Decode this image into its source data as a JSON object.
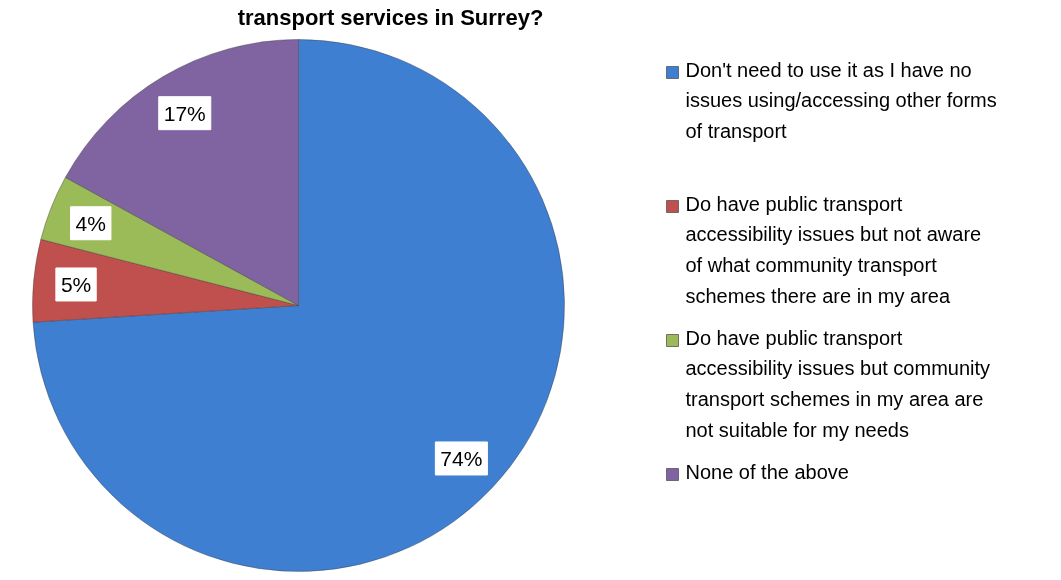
{
  "chart_data": {
    "type": "pie",
    "title": "transport services in Surrey?",
    "categories": [
      "Don't need to use it as I have no issues using/accessing other forms of transport",
      "Do have public transport accessibility issues but not aware of what community transport schemes there are in my area",
      "Do have public transport accessibility issues but community transport schemes in my area are not suitable for my needs",
      "None of the above"
    ],
    "values": [
      74,
      5,
      4,
      17
    ],
    "colors": [
      "#3f7fd2",
      "#c0504d",
      "#9bbb59",
      "#8064a2"
    ],
    "value_labels": [
      "74%",
      "5%",
      "4%",
      "17%"
    ],
    "legend": "right"
  }
}
